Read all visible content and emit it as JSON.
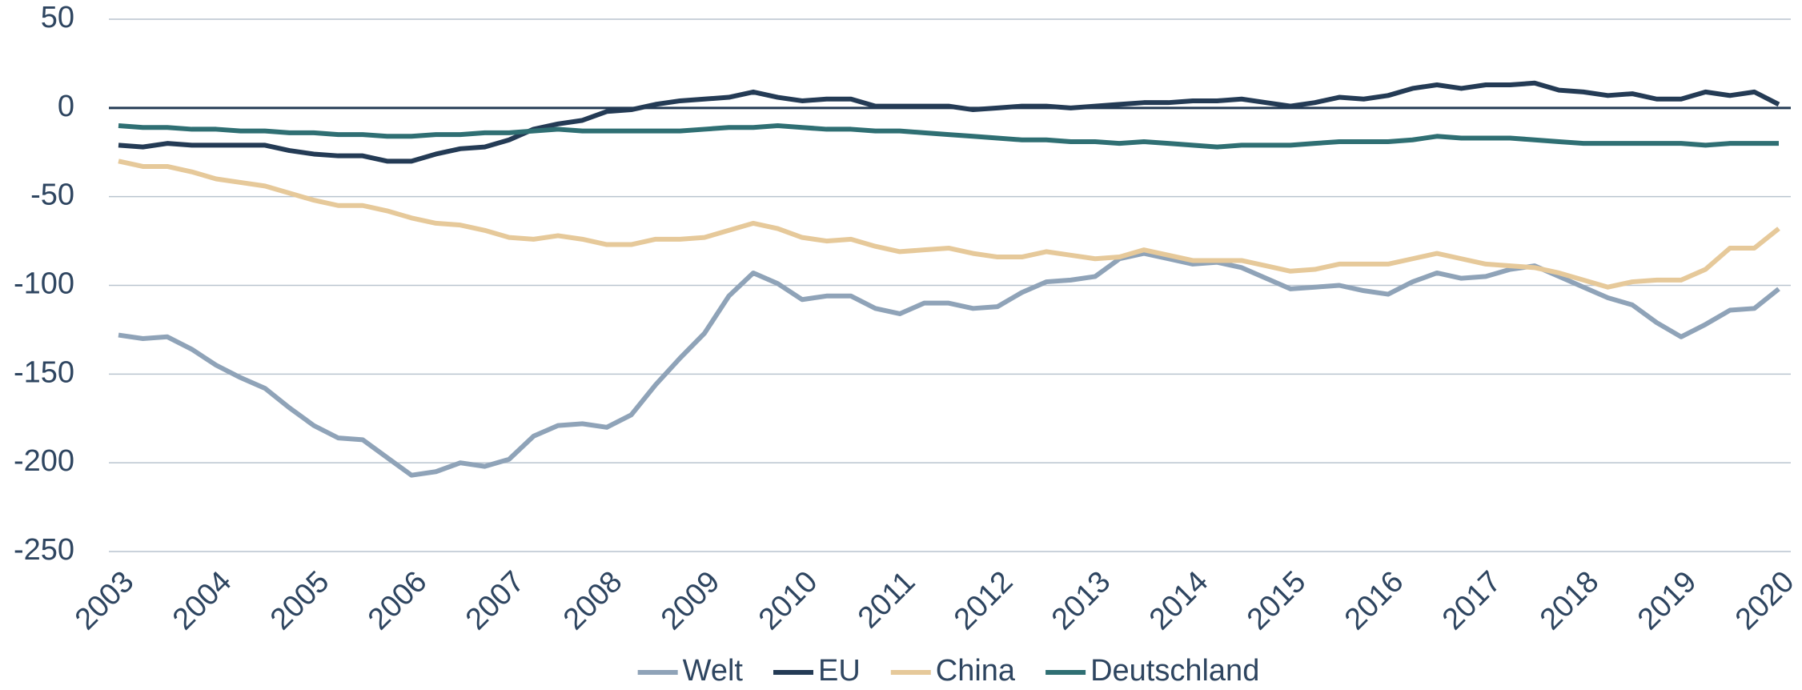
{
  "chart_data": {
    "type": "line",
    "x": [
      2003,
      2003.25,
      2003.5,
      2003.75,
      2004,
      2004.25,
      2004.5,
      2004.75,
      2005,
      2005.25,
      2005.5,
      2005.75,
      2006,
      2006.25,
      2006.5,
      2006.75,
      2007,
      2007.25,
      2007.5,
      2007.75,
      2008,
      2008.25,
      2008.5,
      2008.75,
      2009,
      2009.25,
      2009.5,
      2009.75,
      2010,
      2010.25,
      2010.5,
      2010.75,
      2011,
      2011.25,
      2011.5,
      2011.75,
      2012,
      2012.25,
      2012.5,
      2012.75,
      2013,
      2013.25,
      2013.5,
      2013.75,
      2014,
      2014.25,
      2014.5,
      2014.75,
      2015,
      2015.25,
      2015.5,
      2015.75,
      2016,
      2016.25,
      2016.5,
      2016.75,
      2017,
      2017.25,
      2017.5,
      2017.75,
      2018,
      2018.25,
      2018.5,
      2018.75,
      2019,
      2019.25,
      2019.5,
      2019.75,
      2020
    ],
    "series": [
      {
        "name": "Welt",
        "color": "#8fa3b8",
        "values": [
          -128,
          -130,
          -129,
          -136,
          -145,
          -152,
          -158,
          -169,
          -179,
          -186,
          -187,
          -197,
          -207,
          -205,
          -200,
          -202,
          -198,
          -185,
          -179,
          -178,
          -180,
          -173,
          -156,
          -141,
          -127,
          -106,
          -93,
          -99,
          -108,
          -106,
          -106,
          -113,
          -116,
          -110,
          -110,
          -113,
          -112,
          -104,
          -98,
          -97,
          -95,
          -85,
          -82,
          -85,
          -88,
          -87,
          -90,
          -96,
          -102,
          -101,
          -100,
          -103,
          -105,
          -98,
          -93,
          -96,
          -95,
          -91,
          -89,
          -95,
          -101,
          -107,
          -111,
          -121,
          -129,
          -122,
          -114,
          -113,
          -102
        ]
      },
      {
        "name": "EU",
        "color": "#243b55",
        "values": [
          -21,
          -22,
          -20,
          -21,
          -21,
          -21,
          -21,
          -24,
          -26,
          -27,
          -27,
          -30,
          -30,
          -26,
          -23,
          -22,
          -18,
          -12,
          -9,
          -7,
          -2,
          -1,
          2,
          4,
          5,
          6,
          9,
          6,
          4,
          5,
          5,
          1,
          1,
          1,
          1,
          -1,
          0,
          1,
          1,
          0,
          1,
          2,
          3,
          3,
          4,
          4,
          5,
          3,
          1,
          3,
          6,
          5,
          7,
          11,
          13,
          11,
          13,
          13,
          14,
          10,
          9,
          7,
          8,
          5,
          5,
          9,
          7,
          9,
          2
        ]
      },
      {
        "name": "China",
        "color": "#e6c99a",
        "values": [
          -30,
          -33,
          -33,
          -36,
          -40,
          -42,
          -44,
          -48,
          -52,
          -55,
          -55,
          -58,
          -62,
          -65,
          -66,
          -69,
          -73,
          -74,
          -72,
          -74,
          -77,
          -77,
          -74,
          -74,
          -73,
          -69,
          -65,
          -68,
          -73,
          -75,
          -74,
          -78,
          -81,
          -80,
          -79,
          -82,
          -84,
          -84,
          -81,
          -83,
          -85,
          -84,
          -80,
          -83,
          -86,
          -86,
          -86,
          -89,
          -92,
          -91,
          -88,
          -88,
          -88,
          -85,
          -82,
          -85,
          -88,
          -89,
          -90,
          -93,
          -97,
          -101,
          -98,
          -97,
          -97,
          -91,
          -79,
          -79,
          -68
        ]
      },
      {
        "name": "Deutschland",
        "color": "#2f6f73",
        "values": [
          -10,
          -11,
          -11,
          -12,
          -12,
          -13,
          -13,
          -14,
          -14,
          -15,
          -15,
          -16,
          -16,
          -15,
          -15,
          -14,
          -14,
          -13,
          -12,
          -13,
          -13,
          -13,
          -13,
          -13,
          -12,
          -11,
          -11,
          -10,
          -11,
          -12,
          -12,
          -13,
          -13,
          -14,
          -15,
          -16,
          -17,
          -18,
          -18,
          -19,
          -19,
          -20,
          -19,
          -20,
          -21,
          -22,
          -21,
          -21,
          -21,
          -20,
          -19,
          -19,
          -19,
          -18,
          -16,
          -17,
          -17,
          -17,
          -18,
          -19,
          -20,
          -20,
          -20,
          -20,
          -20,
          -21,
          -20,
          -20,
          -20
        ]
      }
    ],
    "xlim": [
      2003,
      2020
    ],
    "xticks": [
      2003,
      2004,
      2005,
      2006,
      2007,
      2008,
      2009,
      2010,
      2011,
      2012,
      2013,
      2014,
      2015,
      2016,
      2017,
      2018,
      2019,
      2020
    ],
    "ylim": [
      -250,
      50
    ],
    "yticks": [
      50,
      0,
      -50,
      -100,
      -150,
      -200,
      -250
    ],
    "grid": true,
    "legend": "bottom"
  }
}
